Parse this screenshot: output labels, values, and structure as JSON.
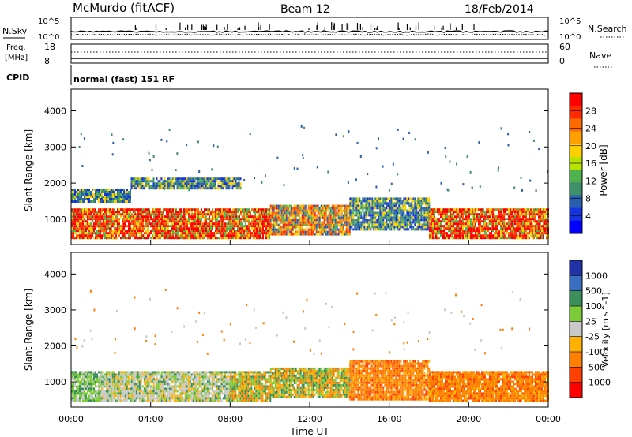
{
  "header": {
    "station": "McMurdo (fitACF)",
    "beam": "Beam 12",
    "date": "18/Feb/2014"
  },
  "status_panels": {
    "nsky_label": "N.Sky",
    "nsky_ticks": [
      "10^5",
      "10^0"
    ],
    "nsearch_label": "N.Search",
    "nsearch_ticks": [
      "10^5",
      "10^0"
    ],
    "freq_label": "Freq.",
    "freq_unit": "[MHz]",
    "freq_ticks": [
      "18",
      "8"
    ],
    "nave_label": "Nave",
    "nave_ticks": [
      "60",
      "0"
    ],
    "cpid_label": "CPID",
    "cpid_text": "normal (fast) 151 RF"
  },
  "chart_data": [
    {
      "type": "heatmap",
      "name": "power",
      "ylabel": "Slant Range [km]",
      "ylim": [
        300,
        4600
      ],
      "yticks": [
        "4000",
        "3000",
        "2000",
        "1000"
      ],
      "colorbar": {
        "label": "Power [dB]",
        "ticks": [
          "28",
          "24",
          "20",
          "16",
          "12",
          "8",
          "4"
        ],
        "colors": [
          "#ff0000",
          "#ff2a00",
          "#ff6a00",
          "#ff9f00",
          "#ffd000",
          "#b8e200",
          "#4fb24f",
          "#3f8f6a",
          "#2a5fb0",
          "#1434e0",
          "#0000ff"
        ]
      },
      "regions": [
        {
          "t0": 0.0,
          "t1": 10.0,
          "r0": 450,
          "r1": 1300,
          "level": "strong"
        },
        {
          "t0": 10.0,
          "t1": 14.0,
          "r0": 600,
          "r1": 1400,
          "level": "moderate"
        },
        {
          "t0": 14.0,
          "t1": 18.0,
          "r0": 700,
          "r1": 1600,
          "level": "weak"
        },
        {
          "t0": 18.0,
          "t1": 24.0,
          "r0": 450,
          "r1": 1300,
          "level": "strong"
        },
        {
          "t0": 3.0,
          "t1": 8.5,
          "r0": 1850,
          "r1": 2150,
          "level": "weak"
        },
        {
          "t0": 0.0,
          "t1": 3.0,
          "r0": 1500,
          "r1": 1850,
          "level": "weak"
        }
      ]
    },
    {
      "type": "heatmap",
      "name": "velocity",
      "ylabel": "Slant Range [km]",
      "xlabel": "Time UT",
      "xticks": [
        "00:00",
        "04:00",
        "08:00",
        "12:00",
        "16:00",
        "20:00",
        "00:00"
      ],
      "xlim": [
        0,
        24
      ],
      "ylim": [
        300,
        4600
      ],
      "yticks": [
        "4000",
        "3000",
        "2000",
        "1000"
      ],
      "colorbar": {
        "label": "Velocity [m s^-1]",
        "ticks": [
          "1000",
          "500",
          "100",
          "25",
          "-25",
          "-100",
          "-500",
          "-1000"
        ],
        "colors": [
          "#2233aa",
          "#3a6ec0",
          "#3a8f5a",
          "#7ecb3a",
          "#c8c8c8",
          "#ffb000",
          "#ff8000",
          "#ff4000",
          "#ff0000"
        ]
      },
      "regions": [
        {
          "t0": 0.0,
          "t1": 1.5,
          "r0": 450,
          "r1": 1300,
          "level": "green"
        },
        {
          "t0": 1.5,
          "t1": 8.0,
          "r0": 450,
          "r1": 1300,
          "level": "mixed-green-grey"
        },
        {
          "t0": 8.0,
          "t1": 10.0,
          "r0": 500,
          "r1": 1300,
          "level": "orange-green"
        },
        {
          "t0": 10.0,
          "t1": 14.0,
          "r0": 600,
          "r1": 1400,
          "level": "green-orange"
        },
        {
          "t0": 14.0,
          "t1": 18.0,
          "r0": 500,
          "r1": 1600,
          "level": "orange"
        },
        {
          "t0": 18.0,
          "t1": 24.0,
          "r0": 450,
          "r1": 1300,
          "level": "orange"
        }
      ]
    }
  ]
}
